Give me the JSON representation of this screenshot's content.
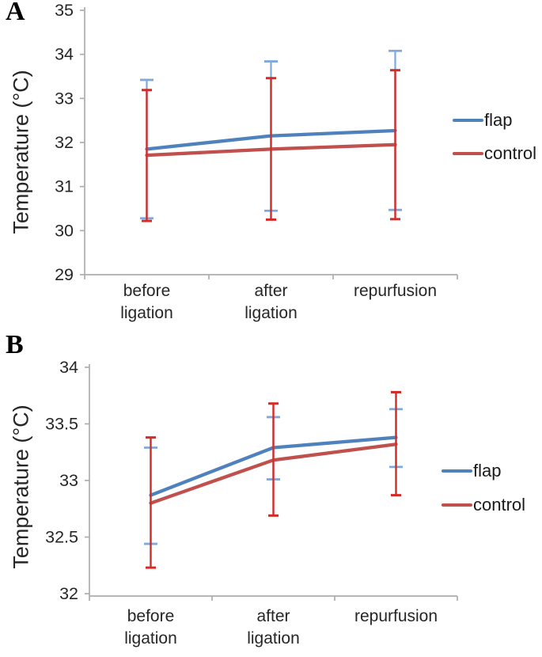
{
  "figure": {
    "panels": [
      {
        "label": "A"
      },
      {
        "label": "B"
      }
    ]
  },
  "chart_data": [
    {
      "type": "line",
      "panel": "A",
      "title": "",
      "xlabel": "",
      "ylabel": "Temperature (°C)",
      "categories": [
        "before ligation",
        "after ligation",
        "repurfusion"
      ],
      "ylim": [
        29,
        35
      ],
      "yticks": [
        35,
        34,
        33,
        32,
        31,
        30,
        29
      ],
      "grid": false,
      "legend_position": "right",
      "colors": {
        "flap_line": "#4F81BD",
        "control_line": "#C0504D",
        "flap_error": "#7FA9DC",
        "control_error": "#D42B27",
        "axis": "#ADADAD",
        "text": "#262626"
      },
      "series": [
        {
          "name": "flap",
          "values": [
            31.85,
            32.15,
            32.27
          ],
          "error_upper": [
            33.42,
            33.84,
            34.08
          ],
          "error_lower": [
            30.28,
            30.45,
            30.47
          ]
        },
        {
          "name": "control",
          "values": [
            31.71,
            31.85,
            31.95
          ],
          "error_upper": [
            33.19,
            33.46,
            33.64
          ],
          "error_lower": [
            30.22,
            30.25,
            30.26
          ]
        }
      ]
    },
    {
      "type": "line",
      "panel": "B",
      "title": "",
      "xlabel": "",
      "ylabel": "Temperature (°C)",
      "categories": [
        "before ligation",
        "after ligation",
        "repurfusion"
      ],
      "ylim": [
        32,
        34
      ],
      "yticks": [
        34,
        33.5,
        33,
        32.5,
        32
      ],
      "grid": false,
      "legend_position": "right",
      "colors": {
        "flap_line": "#4F81BD",
        "control_line": "#C0504D",
        "flap_error": "#7FA9DC",
        "control_error": "#D42B27",
        "axis": "#ADADAD",
        "text": "#262626"
      },
      "series": [
        {
          "name": "flap",
          "values": [
            32.87,
            33.29,
            33.38
          ],
          "error_upper": [
            33.29,
            33.56,
            33.63
          ],
          "error_lower": [
            32.44,
            33.01,
            33.12
          ]
        },
        {
          "name": "control",
          "values": [
            32.8,
            33.18,
            33.32
          ],
          "error_upper": [
            33.38,
            33.68,
            33.78
          ],
          "error_lower": [
            32.23,
            32.69,
            32.87
          ]
        }
      ]
    }
  ]
}
